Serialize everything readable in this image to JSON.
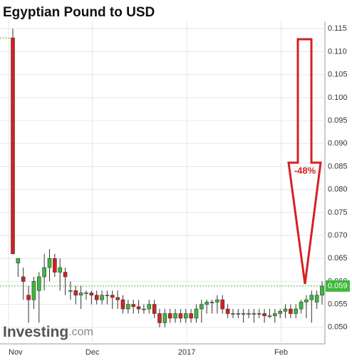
{
  "chart_data": {
    "type": "candlestick",
    "title": "Egyptian Pound to USD",
    "categories": [
      "Nov",
      null,
      null,
      null,
      null,
      null,
      null,
      null,
      null,
      null,
      null,
      null,
      null,
      null,
      null,
      null,
      "Dec",
      null,
      null,
      null,
      null,
      null,
      null,
      null,
      null,
      null,
      null,
      null,
      null,
      null,
      null,
      null,
      null,
      null,
      "2017",
      null,
      null,
      null,
      null,
      null,
      null,
      null,
      null,
      null,
      null,
      null,
      null,
      null,
      null,
      null,
      null,
      null,
      "Feb",
      null,
      null,
      null,
      null,
      null,
      null,
      null
    ],
    "open": [
      0.113,
      0.064,
      0.061,
      0.057,
      0.056,
      0.058,
      0.061,
      0.063,
      0.065,
      0.062,
      0.062,
      0.058,
      0.058,
      0.057,
      0.0575,
      0.0575,
      0.057,
      0.056,
      0.057,
      0.057,
      0.0565,
      0.056,
      0.054,
      0.055,
      0.0545,
      0.054,
      0.054,
      0.055,
      0.053,
      0.051,
      0.053,
      0.052,
      0.053,
      0.052,
      0.053,
      0.052,
      0.054,
      0.055,
      0.0555,
      0.0555,
      0.056,
      0.054,
      0.053,
      0.053,
      0.053,
      0.053,
      0.053,
      0.053,
      0.053,
      0.0525,
      0.0525,
      0.053,
      0.0535,
      0.054,
      0.053,
      0.054,
      0.0555,
      0.056,
      0.0555,
      0.057
    ],
    "high": [
      0.115,
      0.065,
      0.063,
      0.059,
      0.061,
      0.062,
      0.066,
      0.067,
      0.066,
      0.065,
      0.063,
      0.06,
      0.059,
      0.059,
      0.058,
      0.058,
      0.058,
      0.058,
      0.058,
      0.058,
      0.058,
      0.057,
      0.056,
      0.056,
      0.056,
      0.055,
      0.056,
      0.056,
      0.054,
      0.054,
      0.054,
      0.054,
      0.054,
      0.054,
      0.054,
      0.055,
      0.056,
      0.056,
      0.056,
      0.057,
      0.057,
      0.055,
      0.054,
      0.054,
      0.054,
      0.054,
      0.054,
      0.054,
      0.054,
      0.054,
      0.054,
      0.054,
      0.055,
      0.055,
      0.055,
      0.056,
      0.057,
      0.058,
      0.058,
      0.06
    ],
    "low": [
      0.066,
      0.061,
      0.056,
      0.051,
      0.054,
      0.051,
      0.058,
      0.06,
      0.061,
      0.058,
      0.057,
      0.056,
      0.055,
      0.054,
      0.056,
      0.055,
      0.055,
      0.055,
      0.055,
      0.054,
      0.054,
      0.053,
      0.053,
      0.053,
      0.053,
      0.053,
      0.053,
      0.052,
      0.05,
      0.05,
      0.051,
      0.051,
      0.051,
      0.051,
      0.051,
      0.051,
      0.051,
      0.053,
      0.053,
      0.053,
      0.053,
      0.052,
      0.052,
      0.052,
      0.051,
      0.052,
      0.051,
      0.052,
      0.051,
      0.052,
      0.051,
      0.052,
      0.052,
      0.052,
      0.052,
      0.053,
      0.052,
      0.051,
      0.054,
      0.055
    ],
    "close": [
      0.066,
      0.065,
      0.06,
      0.056,
      0.06,
      0.061,
      0.063,
      0.065,
      0.062,
      0.063,
      0.061,
      0.058,
      0.057,
      0.0575,
      0.0575,
      0.057,
      0.056,
      0.057,
      0.057,
      0.0565,
      0.056,
      0.054,
      0.055,
      0.0545,
      0.054,
      0.054,
      0.055,
      0.053,
      0.051,
      0.053,
      0.052,
      0.053,
      0.052,
      0.053,
      0.052,
      0.054,
      0.055,
      0.0555,
      0.0555,
      0.056,
      0.054,
      0.053,
      0.053,
      0.053,
      0.053,
      0.053,
      0.053,
      0.053,
      0.0525,
      0.0525,
      0.053,
      0.0535,
      0.054,
      0.053,
      0.054,
      0.0555,
      0.056,
      0.057,
      0.057,
      0.059
    ],
    "up_color": "#3cb93c",
    "down_color": "#d62020",
    "ylim": [
      0.0464,
      0.1166
    ],
    "yticks": [
      {
        "value": 0.05,
        "label": "0.050"
      },
      0.055,
      {
        "value": 0.06,
        "label": "0.060"
      },
      0.065,
      {
        "value": 0.07,
        "label": "0.070"
      },
      0.075,
      {
        "value": 0.08,
        "label": "0.080"
      },
      0.085,
      {
        "value": 0.09,
        "label": "0.090"
      },
      0.095,
      {
        "value": 0.1,
        "label": "0.100"
      },
      0.105,
      {
        "value": 0.11,
        "label": "0.110"
      },
      0.115
    ],
    "grid": true,
    "last_value": 0.059,
    "annotation": "-48%",
    "logo": "Investing",
    "logo_suffix": ".com"
  }
}
